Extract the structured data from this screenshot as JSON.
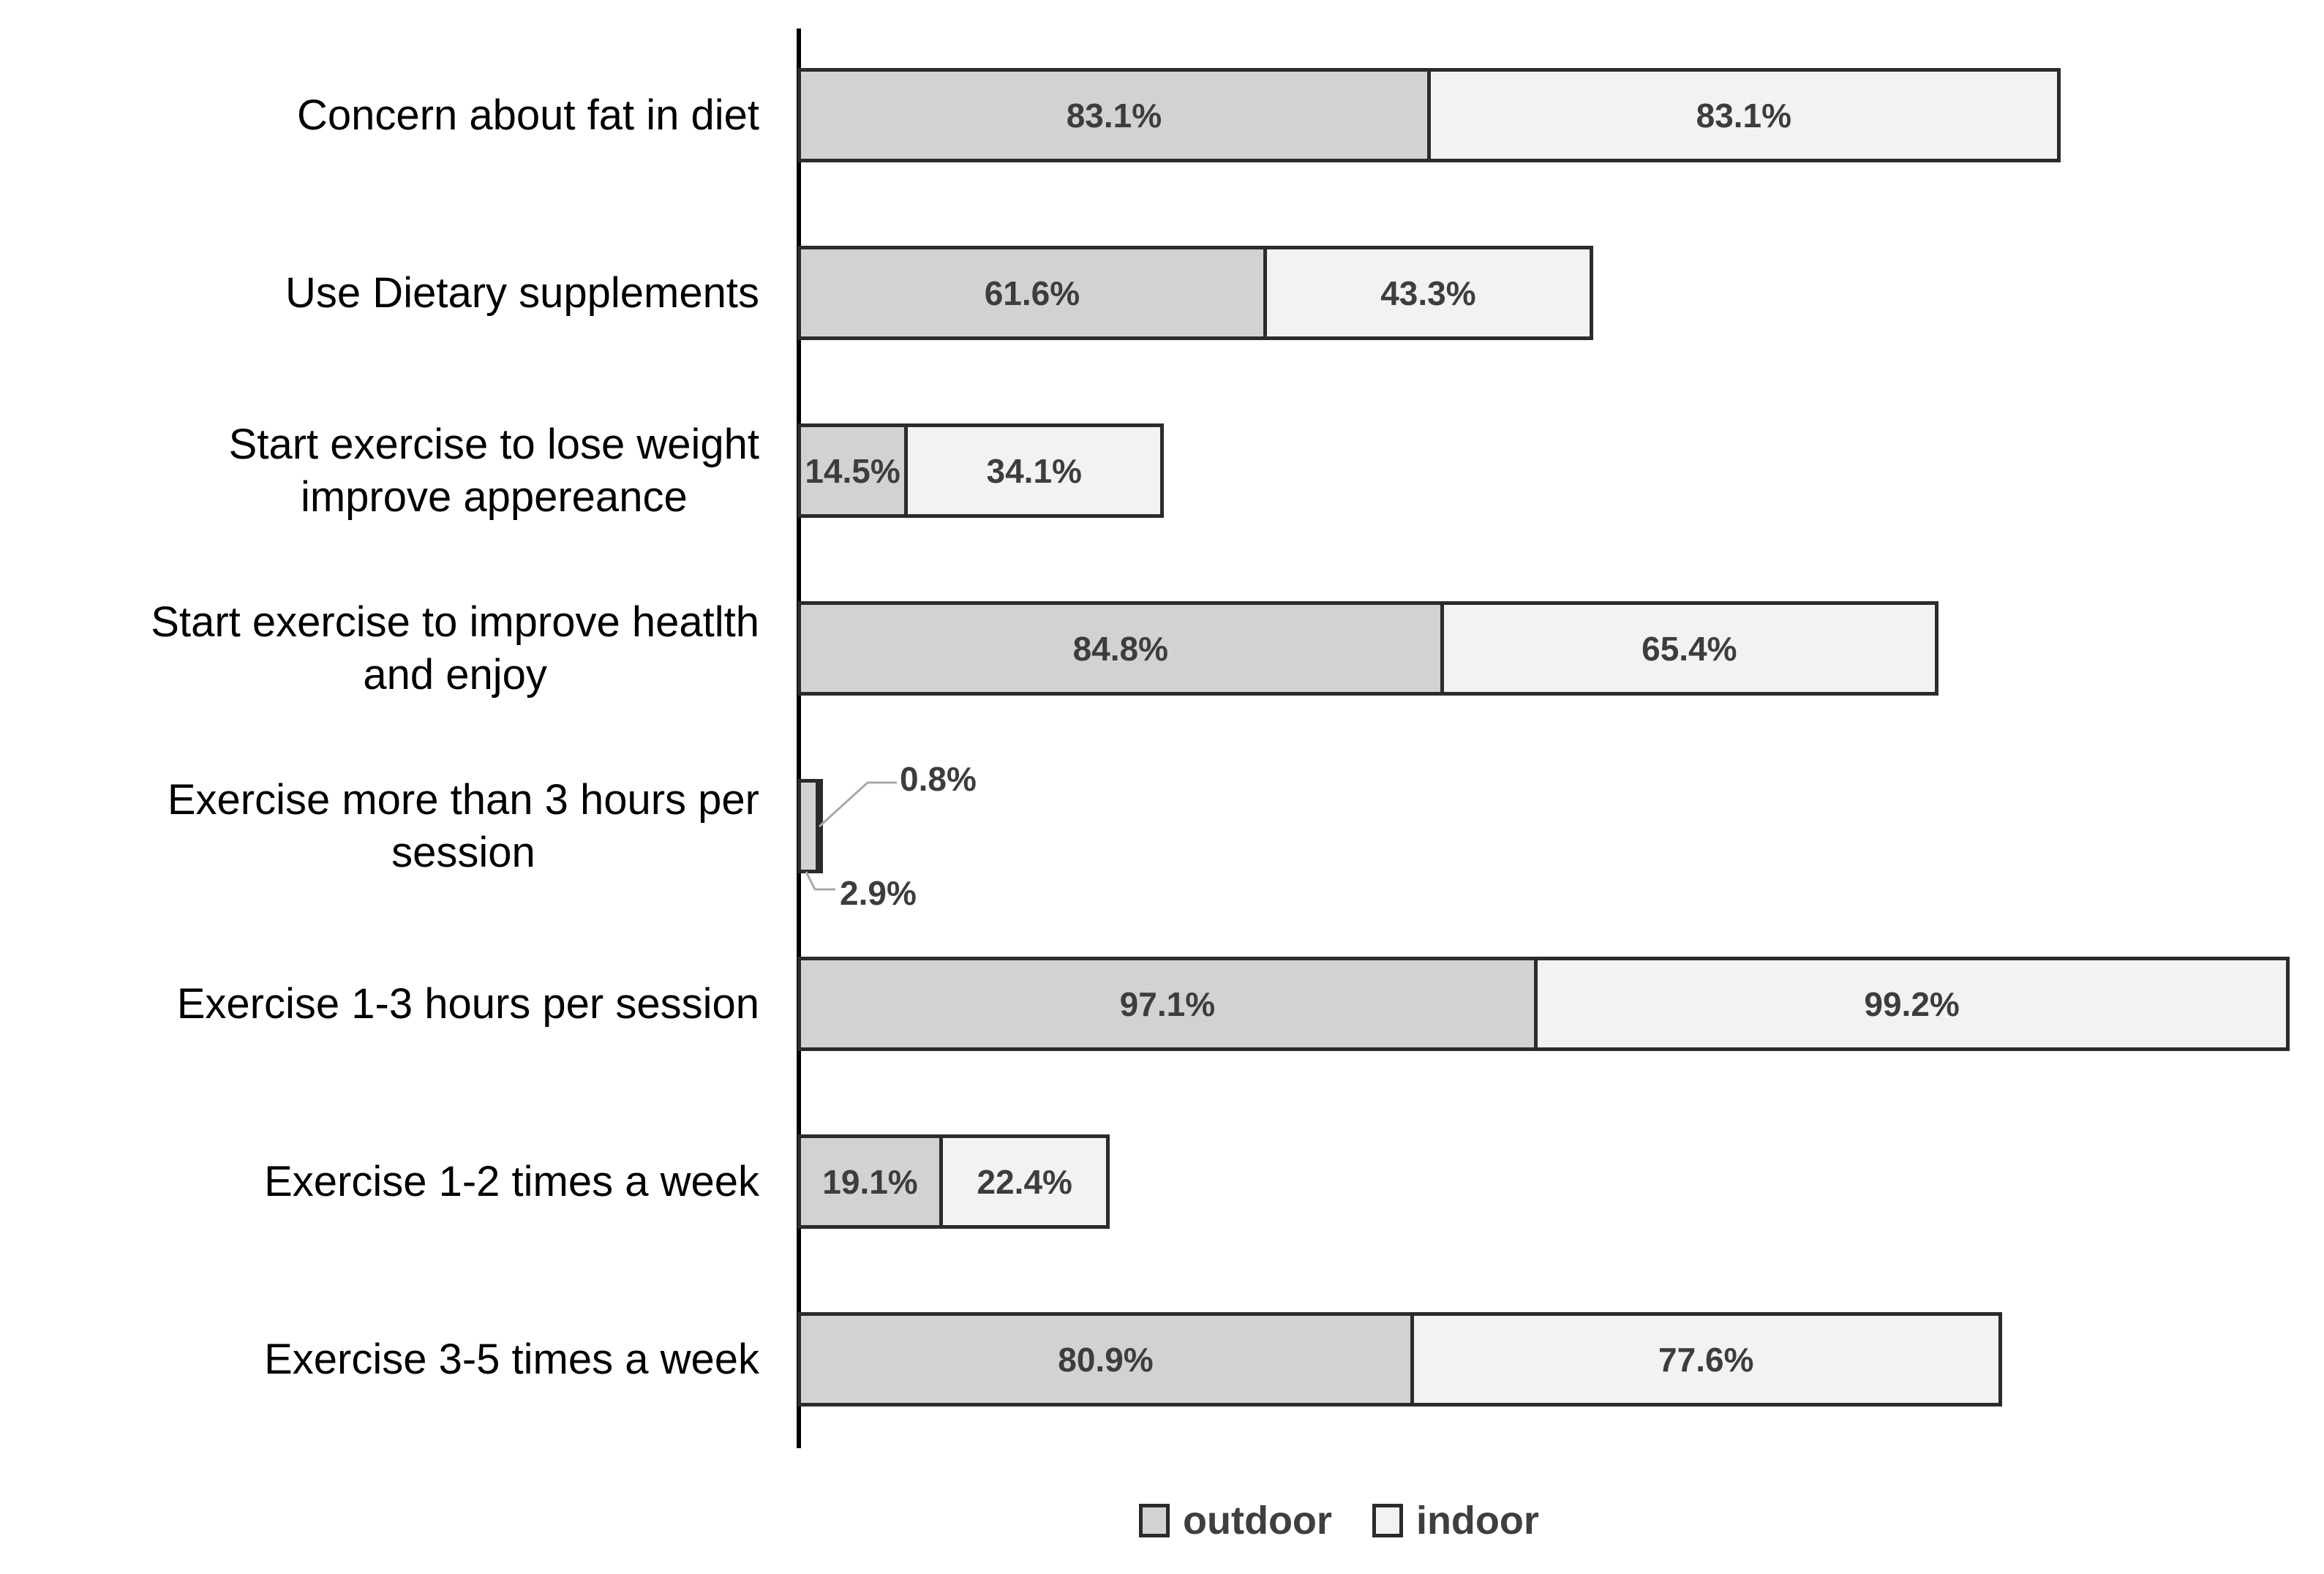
{
  "chart_data": {
    "type": "bar",
    "orientation": "horizontal",
    "stacked": true,
    "title": "",
    "xlabel": "",
    "ylabel": "",
    "xlim": [
      0,
      200
    ],
    "grid": false,
    "legend_position": "bottom",
    "categories": [
      "Concern about fat in diet",
      "Use Dietary supplements",
      "Start exercise to lose weight\nimprove appereance",
      "Start exercise to improve heatlth\nand enjoy",
      "Exercise more than 3 hours per\nsession",
      "Exercise 1-3 hours  per session",
      "Exercise 1-2 times a week",
      "Exercise 3-5 times a week"
    ],
    "series": [
      {
        "name": "outdoor",
        "color": "#d2d2d2",
        "values": [
          83.1,
          61.6,
          14.5,
          84.8,
          2.9,
          97.1,
          19.1,
          80.9
        ],
        "labels": [
          "83.1%",
          "61.6%",
          "14.5%",
          "84.8%",
          "2.9%",
          "97.1%",
          "19.1%",
          "80.9%"
        ]
      },
      {
        "name": "indoor",
        "color": "#f2f2f2",
        "values": [
          83.1,
          43.3,
          34.1,
          65.4,
          0.8,
          99.2,
          22.4,
          77.6
        ],
        "labels": [
          "83.1%",
          "43.3%",
          "34.1%",
          "65.4%",
          "0.8%",
          "99.2%",
          "22.4%",
          "77.6%"
        ]
      }
    ],
    "callouts": [
      {
        "row": 4,
        "series": "indoor",
        "text": "0.8%",
        "placement": "above"
      },
      {
        "row": 4,
        "series": "outdoor",
        "text": "2.9%",
        "placement": "below"
      }
    ],
    "legend": {
      "items": [
        {
          "label": "outdoor",
          "color": "#d2d2d2"
        },
        {
          "label": "indoor",
          "color": "#f2f2f2"
        }
      ]
    }
  },
  "colors": {
    "bar_border": "#2b2b2b",
    "axis": "#000000",
    "value_text": "#3d3d3d",
    "category_text": "#000000",
    "legend_text": "#3f3f3f",
    "leader_line": "#a9a9a9",
    "background": "#ffffff"
  }
}
